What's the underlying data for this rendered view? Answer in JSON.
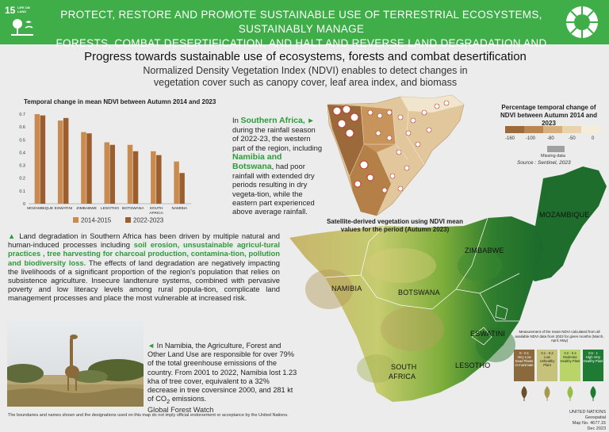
{
  "banner": {
    "sdg_number": "15",
    "sdg_badge_text": "LIFE ON LAND",
    "title_line1": "PROTECT, RESTORE AND PROMOTE SUSTAINABLE USE OF TERRESTRIAL ECOSYSTEMS, SUSTAINABLY MANAGE",
    "title_line2": "FORESTS, COMBAT DESERTIFICATION, AND HALT AND REVERSE LAND DEGRADATION AND HALT BIODIVERSITY LOSS",
    "color": "#3fae49"
  },
  "header": {
    "title": "Progress towards sustainable use of ecosystems, forests and combat desertification",
    "subtitle_line1": "Normalized Density Vegetation Index (NDVI) enables to detect changes in",
    "subtitle_line2": "vegetation cover such as canopy cover, leaf area index, and biomass"
  },
  "chart_data": {
    "type": "bar",
    "title": "Temporal change in mean NDVI between Autumn 2014 and 2023",
    "categories": [
      "MOZAMBIQUE",
      "ESWATINI",
      "ZIMBABWE",
      "LESOTHO",
      "BOTSWANA",
      "SOUTH AFRICA",
      "NAMIBIA"
    ],
    "series": [
      {
        "name": "2014-2015",
        "color": "#c98b4f",
        "values": [
          0.7,
          0.65,
          0.56,
          0.48,
          0.46,
          0.41,
          0.33
        ]
      },
      {
        "name": "2022-2023",
        "color": "#9c5e2c",
        "values": [
          0.69,
          0.67,
          0.55,
          0.46,
          0.41,
          0.38,
          0.24
        ]
      }
    ],
    "yticks": [
      "0",
      "0.1",
      "0.2",
      "0.3",
      "0.4",
      "0.5",
      "0.6",
      "0.7"
    ],
    "ylim": [
      0,
      0.7
    ],
    "grid": false,
    "legend": "bottom"
  },
  "texts": {
    "sa_prefix": "In ",
    "sa_country": "Southern Africa,",
    "sa_arrow": "►",
    "sa_body1": " during the rainfall season of 2022-23, the western part of the region, including ",
    "sa_countries": "Namibia and Botswana",
    "sa_body2": ", had poor rainfall with extended dry periods resulting in dry vegeta-tion, while the eastern part experienced above average rainfall.",
    "p1_marker": "▲",
    "p1_a": " Land degradation in Southern Africa has been driven by multiple natural and human-induced processes including ",
    "p1_hl": "soil erosion, unsustainable agricul-tural practices , tree harvesting for charcoal production, contamina-tion, pollution and biodiversity loss.",
    "p1_b": " The effects of land degradation are negatively impacting the livelihoods of a significant proportion of the region's population that relies on subsistence agriculture. Insecure landtenure systems, combined with pervasive poverty and low literacy levels among rural popula-tion, complicate land management processes and place the most vulnerable at increased risk.",
    "p2_marker": "◄",
    "p2_a": " In Namibia, the Agriculture, Forest and Other Land Use are responsible for  over 79% of the total greenhouse emissions of the country. From 2001 to 2022, Namibia lost 1.23 kha of tree cover, equivalent to a 32% decrease in tree coversince 2000, and 281 kt of CO",
    "p2_sub": "2",
    "p2_b": " emissions.",
    "p2_source": "Global Forest Watch"
  },
  "pct_legend": {
    "title": "Percentage temporal change of NDVI between Autumn 2014 and 2023",
    "labels": [
      "-160",
      "-100",
      "-80",
      "-50",
      "0"
    ],
    "colors": [
      "#9c6a3a",
      "#b98550",
      "#d6b07c",
      "#e8d3ad",
      "#f5ecd9"
    ],
    "missing_color": "#a0a0a0",
    "missing_label": "Missing data",
    "source": "Source : Sentinel, 2023"
  },
  "map": {
    "sat_title": "Satellite-derived vegetation using NDVI mean values for the period (Autumn 2023)",
    "labels": {
      "mozambique": "MOZAMBIQUE",
      "zimbabwe": "ZIMBABWE",
      "namibia": "NAMIBIA",
      "botswana": "BOTSWANA",
      "eswatini": "ESWATINI",
      "lesotho": "LESOTHO",
      "south_africa_1": "SOUTH",
      "south_africa_2": "AFRICA"
    }
  },
  "ndvi_legend": {
    "title": "Measurement of the mean NDVI calculated from all available NDVI data from 2023 for given months (March, April, May)",
    "classes": [
      {
        "range": "0 - 0.1",
        "desc": "Very Low Dead Plants or Inanimate",
        "color": "#8a6a3c"
      },
      {
        "range": "0.1 - 0.2",
        "desc": "Low Unhealthy Plant",
        "color": "#c7c27a"
      },
      {
        "range": "0.2 - 0.4",
        "desc": "Moderate Healthy Plant",
        "color": "#b9d56a"
      },
      {
        "range": "0.5 - 1",
        "desc": "High Very Healthy Plant",
        "color": "#1f7a34"
      }
    ]
  },
  "footer": {
    "disclaimer": "The boundaries and names shown and the designations used on this map do not imply official endorsement or acceptance by the United Nations.",
    "credit1": "UNITED NATIONS Geospatial",
    "credit2": "Map No. 4677.15",
    "credit3": "Dec 2023"
  }
}
